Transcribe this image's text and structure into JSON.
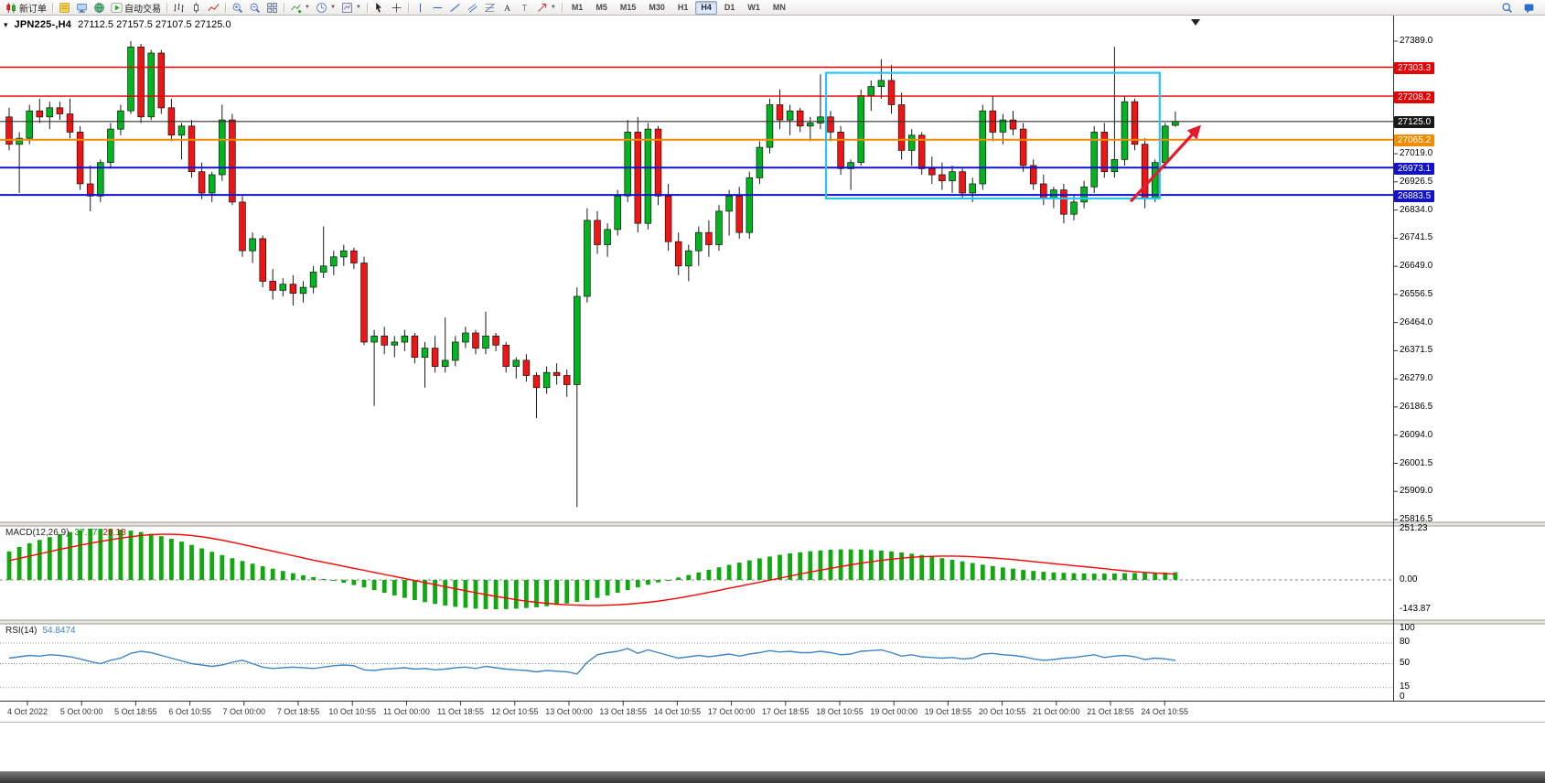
{
  "toolbar": {
    "buttons": [
      {
        "name": "new-order",
        "icon": "candles",
        "label": "新订单"
      },
      {
        "name": "sep"
      },
      {
        "name": "metaeditor",
        "icon": "doc-yellow"
      },
      {
        "name": "market-watch",
        "icon": "monitor"
      },
      {
        "name": "navigator",
        "icon": "globe"
      },
      {
        "name": "auto-trading",
        "icon": "play",
        "label": "自动交易"
      },
      {
        "name": "sep"
      },
      {
        "name": "chart-bars",
        "icon": "bars"
      },
      {
        "name": "chart-candles",
        "icon": "candle"
      },
      {
        "name": "chart-line",
        "icon": "linechart"
      },
      {
        "name": "sep"
      },
      {
        "name": "zoom-in",
        "icon": "zoomin"
      },
      {
        "name": "zoom-out",
        "icon": "zoomout"
      },
      {
        "name": "tile-windows",
        "icon": "grid"
      },
      {
        "name": "sep"
      },
      {
        "name": "indicators",
        "icon": "indicator",
        "caret": true
      },
      {
        "name": "periods",
        "icon": "clock",
        "caret": true
      },
      {
        "name": "templates",
        "icon": "template",
        "caret": true
      },
      {
        "name": "sep"
      },
      {
        "name": "cursor",
        "icon": "cursor"
      },
      {
        "name": "crosshair",
        "icon": "crosshair"
      },
      {
        "name": "sep"
      },
      {
        "name": "vertical-line",
        "icon": "vline"
      },
      {
        "name": "horizontal-line",
        "icon": "hline"
      },
      {
        "name": "trend-line",
        "icon": "tline"
      },
      {
        "name": "equidistant-channel",
        "icon": "channel"
      },
      {
        "name": "fibonacci",
        "icon": "fibo"
      },
      {
        "name": "text",
        "icon": "textA"
      },
      {
        "name": "text-label",
        "icon": "labelT"
      },
      {
        "name": "arrows",
        "icon": "arrowtool",
        "caret": true
      },
      {
        "name": "sep"
      }
    ],
    "timeframes": [
      "M1",
      "M5",
      "M15",
      "M30",
      "H1",
      "H4",
      "D1",
      "W1",
      "MN"
    ],
    "active_timeframe": "H4",
    "right_icons": [
      {
        "name": "search",
        "icon": "magnifier"
      },
      {
        "name": "community",
        "icon": "chat"
      }
    ]
  },
  "chart_header": {
    "symbol": "JPN225-,H4",
    "ohlc": "27112.5 27157.5 27107.5 27125.0",
    "one_click_icon": "triangle-down",
    "shift_marker_icon": "triangle-down"
  },
  "price_scale": {
    "ticks": [
      "27389.0",
      "27019.0",
      "26926.5",
      "26834.0",
      "26741.5",
      "26649.0",
      "26556.5",
      "26464.0",
      "26371.5",
      "26279.0",
      "26186.5",
      "26094.0",
      "26001.5",
      "25909.0",
      "25816.5"
    ],
    "tags": [
      {
        "text": "27303.3",
        "bg": "#e80000"
      },
      {
        "text": "27208.2",
        "bg": "#e80000"
      },
      {
        "text": "27125.0",
        "bg": "#1a1a1a"
      },
      {
        "text": "27065.2",
        "bg": "#f08c00"
      },
      {
        "text": "26973.1",
        "bg": "#1212cc"
      },
      {
        "text": "26883.5",
        "bg": "#1212cc"
      }
    ]
  },
  "macd_panel": {
    "label": "MACD(12,26,9)",
    "main_value": "37.77",
    "signal_value": "28.18",
    "scale": [
      "251.23",
      "0.00",
      "-143.87"
    ]
  },
  "rsi_panel": {
    "label": "RSI(14)",
    "value": "54.8474",
    "scale": [
      "100",
      "80",
      "50",
      "15",
      "0"
    ]
  },
  "chart_data": {
    "type": "candlestick",
    "title": "JPN225-,H4",
    "symbol": "JPN225-",
    "timeframe": "H4",
    "y_range": [
      25816.5,
      27389.0
    ],
    "colors": {
      "up": "#00b61e",
      "down": "#f01414",
      "wick": "#1a1a1a",
      "macd_hist": "#12a812",
      "macd_signal": "#ff0000",
      "rsi": "#3f86c8",
      "box": "#29c5f6",
      "arrow": "#e8192c"
    },
    "candles": [
      [
        27140,
        27170,
        27030,
        27050
      ],
      [
        27050,
        27090,
        26890,
        27070
      ],
      [
        27070,
        27180,
        27050,
        27160
      ],
      [
        27160,
        27200,
        27120,
        27140
      ],
      [
        27140,
        27190,
        27100,
        27170
      ],
      [
        27170,
        27190,
        27130,
        27150
      ],
      [
        27150,
        27200,
        27070,
        27090
      ],
      [
        27090,
        27110,
        26900,
        26920
      ],
      [
        26920,
        26980,
        26830,
        26880
      ],
      [
        26880,
        27000,
        26860,
        26990
      ],
      [
        26990,
        27120,
        26970,
        27100
      ],
      [
        27100,
        27180,
        27080,
        27160
      ],
      [
        27160,
        27389,
        27150,
        27370
      ],
      [
        27370,
        27380,
        27120,
        27140
      ],
      [
        27140,
        27360,
        27130,
        27350
      ],
      [
        27350,
        27360,
        27150,
        27170
      ],
      [
        27170,
        27200,
        27060,
        27080
      ],
      [
        27080,
        27120,
        27000,
        27110
      ],
      [
        27110,
        27130,
        26940,
        26960
      ],
      [
        26960,
        26990,
        26870,
        26890
      ],
      [
        26890,
        26960,
        26860,
        26950
      ],
      [
        26950,
        27180,
        26930,
        27130
      ],
      [
        27130,
        27150,
        26850,
        26860
      ],
      [
        26860,
        26880,
        26680,
        26700
      ],
      [
        26700,
        26760,
        26660,
        26740
      ],
      [
        26740,
        26750,
        26580,
        26600
      ],
      [
        26600,
        26640,
        26540,
        26570
      ],
      [
        26570,
        26610,
        26550,
        26590
      ],
      [
        26590,
        26620,
        26520,
        26560
      ],
      [
        26560,
        26600,
        26530,
        26580
      ],
      [
        26580,
        26650,
        26560,
        26630
      ],
      [
        26630,
        26780,
        26610,
        26650
      ],
      [
        26650,
        26700,
        26620,
        26680
      ],
      [
        26680,
        26720,
        26650,
        26700
      ],
      [
        26700,
        26710,
        26640,
        26660
      ],
      [
        26660,
        26680,
        26390,
        26400
      ],
      [
        26400,
        26440,
        26190,
        26420
      ],
      [
        26420,
        26450,
        26360,
        26390
      ],
      [
        26390,
        26420,
        26350,
        26400
      ],
      [
        26400,
        26440,
        26370,
        26420
      ],
      [
        26420,
        26430,
        26330,
        26350
      ],
      [
        26350,
        26400,
        26250,
        26380
      ],
      [
        26380,
        26420,
        26300,
        26320
      ],
      [
        26320,
        26480,
        26300,
        26340
      ],
      [
        26340,
        26420,
        26320,
        26400
      ],
      [
        26400,
        26450,
        26380,
        26430
      ],
      [
        26430,
        26440,
        26360,
        26380
      ],
      [
        26380,
        26500,
        26360,
        26420
      ],
      [
        26420,
        26430,
        26370,
        26390
      ],
      [
        26390,
        26400,
        26300,
        26320
      ],
      [
        26320,
        26350,
        26280,
        26340
      ],
      [
        26340,
        26360,
        26270,
        26290
      ],
      [
        26290,
        26300,
        26150,
        26250
      ],
      [
        26250,
        26320,
        26230,
        26300
      ],
      [
        26300,
        26330,
        26260,
        26290
      ],
      [
        26290,
        26310,
        26220,
        26260
      ],
      [
        26260,
        26580,
        25858,
        26550
      ],
      [
        26550,
        26840,
        26530,
        26800
      ],
      [
        26800,
        26830,
        26690,
        26720
      ],
      [
        26720,
        26790,
        26680,
        26770
      ],
      [
        26770,
        26900,
        26750,
        26880
      ],
      [
        26880,
        27130,
        26860,
        27090
      ],
      [
        27090,
        27140,
        26760,
        26790
      ],
      [
        26790,
        27120,
        26770,
        27100
      ],
      [
        27100,
        27110,
        26850,
        26880
      ],
      [
        26880,
        26920,
        26700,
        26730
      ],
      [
        26730,
        26760,
        26620,
        26650
      ],
      [
        26650,
        26720,
        26600,
        26700
      ],
      [
        26700,
        26780,
        26650,
        26760
      ],
      [
        26760,
        26800,
        26680,
        26720
      ],
      [
        26720,
        26850,
        26700,
        26830
      ],
      [
        26830,
        26900,
        26750,
        26880
      ],
      [
        26880,
        26910,
        26740,
        26760
      ],
      [
        26760,
        26960,
        26740,
        26940
      ],
      [
        26940,
        27060,
        26920,
        27040
      ],
      [
        27040,
        27200,
        27020,
        27180
      ],
      [
        27180,
        27230,
        27100,
        27130
      ],
      [
        27130,
        27180,
        27080,
        27160
      ],
      [
        27160,
        27170,
        27090,
        27110
      ],
      [
        27110,
        27140,
        27060,
        27120
      ],
      [
        27120,
        27280,
        27100,
        27140
      ],
      [
        27140,
        27160,
        27060,
        27090
      ],
      [
        27090,
        27110,
        26950,
        26970
      ],
      [
        26970,
        27000,
        26900,
        26990
      ],
      [
        26990,
        27230,
        26980,
        27210
      ],
      [
        27210,
        27260,
        27160,
        27240
      ],
      [
        27240,
        27330,
        27200,
        27260
      ],
      [
        27260,
        27310,
        27150,
        27180
      ],
      [
        27180,
        27220,
        27000,
        27030
      ],
      [
        27030,
        27100,
        26980,
        27080
      ],
      [
        27080,
        27090,
        26950,
        26970
      ],
      [
        26970,
        27010,
        26920,
        26950
      ],
      [
        26950,
        26990,
        26900,
        26930
      ],
      [
        26930,
        26980,
        26890,
        26960
      ],
      [
        26960,
        26970,
        26870,
        26890
      ],
      [
        26890,
        26940,
        26860,
        26920
      ],
      [
        26920,
        27180,
        26900,
        27160
      ],
      [
        27160,
        27210,
        27060,
        27090
      ],
      [
        27090,
        27150,
        27050,
        27130
      ],
      [
        27130,
        27160,
        27080,
        27100
      ],
      [
        27100,
        27120,
        26960,
        26980
      ],
      [
        26980,
        27000,
        26900,
        26920
      ],
      [
        26920,
        26950,
        26850,
        26870
      ],
      [
        26870,
        26910,
        26840,
        26900
      ],
      [
        26900,
        26920,
        26790,
        26820
      ],
      [
        26820,
        26880,
        26800,
        26860
      ],
      [
        26860,
        26930,
        26840,
        26910
      ],
      [
        26910,
        27110,
        26890,
        27090
      ],
      [
        27090,
        27120,
        26940,
        26960
      ],
      [
        26960,
        27370,
        26940,
        27000
      ],
      [
        27000,
        27210,
        26980,
        27190
      ],
      [
        27190,
        27200,
        27030,
        27050
      ],
      [
        27050,
        27070,
        26840,
        26870
      ],
      [
        26870,
        27000,
        26860,
        26990
      ],
      [
        26990,
        27120,
        26970,
        27110
      ],
      [
        27112.5,
        27157.5,
        27107.5,
        27125.0
      ]
    ],
    "hlines": [
      {
        "price": 27303.3,
        "color": "#e80000",
        "width": 1.4
      },
      {
        "price": 27208.2,
        "color": "#e80000",
        "width": 1.4
      },
      {
        "price": 27125.0,
        "color": "#303030",
        "width": 1.1
      },
      {
        "price": 27065.2,
        "color": "#f08c00",
        "width": 2
      },
      {
        "price": 26973.1,
        "color": "#1212cc",
        "width": 2
      },
      {
        "price": 26883.5,
        "color": "#1212cc",
        "width": 2
      }
    ],
    "box": {
      "start_index": 81,
      "end_index": 113,
      "top": 27285,
      "bottom": 26872
    },
    "arrow": {
      "from_index": 110.6,
      "from_price": 26862,
      "to_index": 117.3,
      "to_price": 27105
    },
    "macd": {
      "params": "12,26,9",
      "histogram": [
        140,
        162,
        180,
        196,
        210,
        224,
        235,
        244,
        249,
        251,
        250,
        247,
        242,
        235,
        226,
        215,
        202,
        188,
        172,
        155,
        138,
        122,
        107,
        93,
        80,
        67,
        55,
        44,
        33,
        23,
        14,
        5,
        -4,
        -14,
        -25,
        -37,
        -50,
        -63,
        -76,
        -88,
        -99,
        -109,
        -118,
        -126,
        -132,
        -137,
        -141,
        -143,
        -144,
        -143,
        -141,
        -138,
        -134,
        -129,
        -123,
        -116,
        -108,
        -99,
        -88,
        -76,
        -63,
        -50,
        -37,
        -24,
        -12,
        0,
        12,
        24,
        37,
        50,
        62,
        74,
        85,
        96,
        106,
        115,
        123,
        130,
        136,
        141,
        145,
        148,
        150,
        150,
        149,
        147,
        144,
        140,
        135,
        129,
        122,
        115,
        107,
        99,
        91,
        83,
        75,
        68,
        61,
        55,
        49,
        44,
        40,
        37,
        35,
        33,
        32,
        31,
        31,
        32,
        33,
        34,
        35,
        36,
        37,
        37.77
      ],
      "signal": [
        95,
        106,
        117,
        128,
        139,
        150,
        160,
        170,
        180,
        189,
        197,
        205,
        212,
        218,
        222,
        224,
        224,
        222,
        218,
        212,
        204,
        195,
        185,
        174,
        163,
        152,
        141,
        130,
        119,
        108,
        97,
        87,
        77,
        67,
        57,
        47,
        37,
        27,
        17,
        7,
        -3,
        -13,
        -23,
        -33,
        -43,
        -53,
        -63,
        -72,
        -81,
        -89,
        -97,
        -104,
        -110,
        -115,
        -119,
        -122,
        -124,
        -125,
        -125,
        -124,
        -122,
        -119,
        -115,
        -110,
        -104,
        -97,
        -89,
        -80,
        -71,
        -61,
        -51,
        -41,
        -31,
        -21,
        -11,
        -1,
        9,
        19,
        29,
        39,
        48,
        57,
        66,
        74,
        82,
        89,
        96,
        102,
        107,
        111,
        114,
        116,
        117,
        117,
        116,
        114,
        111,
        108,
        104,
        100,
        95,
        90,
        85,
        80,
        75,
        70,
        65,
        60,
        55,
        50,
        45,
        41,
        37,
        34,
        31,
        28.18
      ]
    },
    "rsi": {
      "params": "14",
      "levels": [
        15,
        50,
        80
      ],
      "values": [
        58,
        60,
        62,
        61,
        63,
        62,
        60,
        57,
        53,
        50,
        55,
        58,
        65,
        68,
        66,
        62,
        58,
        54,
        50,
        48,
        46,
        48,
        52,
        55,
        50,
        45,
        43,
        44,
        45,
        44,
        43,
        45,
        47,
        48,
        47,
        41,
        40,
        42,
        43,
        44,
        42,
        43,
        41,
        42,
        44,
        45,
        43,
        46,
        44,
        42,
        41,
        40,
        38,
        40,
        39,
        38,
        35,
        52,
        63,
        66,
        68,
        72,
        65,
        70,
        66,
        62,
        58,
        60,
        62,
        60,
        62,
        64,
        61,
        64,
        66,
        69,
        67,
        68,
        66,
        66,
        68,
        66,
        63,
        64,
        68,
        69,
        70,
        66,
        61,
        63,
        60,
        59,
        58,
        59,
        57,
        58,
        64,
        65,
        63,
        62,
        60,
        57,
        55,
        56,
        58,
        59,
        61,
        63,
        59,
        61,
        62,
        60,
        56,
        58,
        57,
        54.85
      ]
    },
    "x_labels": [
      "4 Oct 2022",
      "5 Oct 00:00",
      "5 Oct 18:55",
      "6 Oct 10:55",
      "7 Oct 00:00",
      "7 Oct 18:55",
      "10 Oct 10:55",
      "11 Oct 00:00",
      "11 Oct 18:55",
      "12 Oct 10:55",
      "13 Oct 00:00",
      "13 Oct 18:55",
      "14 Oct 10:55",
      "17 Oct 00:00",
      "17 Oct 18:55",
      "18 Oct 10:55",
      "19 Oct 00:00",
      "19 Oct 18:55",
      "20 Oct 10:55",
      "21 Oct 00:00",
      "21 Oct 18:55",
      "24 Oct 10:55"
    ]
  }
}
